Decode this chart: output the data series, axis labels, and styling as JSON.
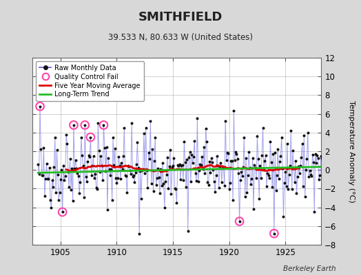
{
  "title": "SMITHFIELD",
  "subtitle": "39.533 N, 80.633 W (United States)",
  "ylabel": "Temperature Anomaly (°C)",
  "credit": "Berkeley Earth",
  "xlim": [
    1902.5,
    1928.2
  ],
  "ylim": [
    -8,
    12
  ],
  "yticks": [
    -8,
    -6,
    -4,
    -2,
    0,
    2,
    4,
    6,
    8,
    10,
    12
  ],
  "xticks": [
    1905,
    1910,
    1915,
    1920,
    1925
  ],
  "background_color": "#d8d8d8",
  "plot_bg_color": "#ffffff",
  "raw_color": "#5555dd",
  "raw_alpha": 0.55,
  "dot_color": "#111111",
  "moving_avg_color": "#dd0000",
  "trend_color": "#22bb22",
  "qc_color": "#ff44aa",
  "seed": 42,
  "start_year": 1903.0,
  "end_year": 1927.9
}
